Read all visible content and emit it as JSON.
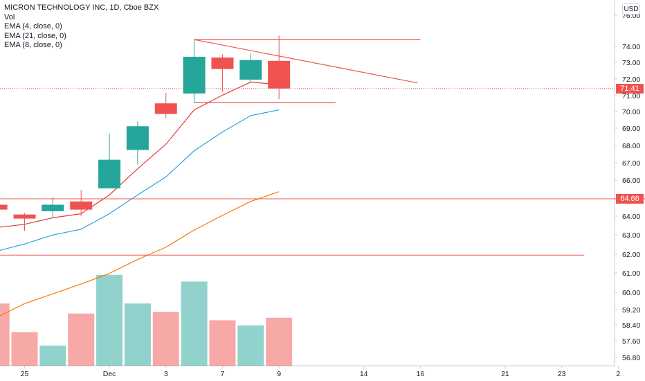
{
  "legend": {
    "title": "MICRON TECHNOLOGY INC, 1D, Cboe BZX",
    "vol": "Vol",
    "ema1": "EMA (4, close, 0)",
    "ema2": "EMA (21, close, 0)",
    "ema3": "EMA (8, close, 0)"
  },
  "currency": "USD",
  "price_tags": {
    "last": "71.41",
    "level": "64.66"
  },
  "colors": {
    "up": "#26a69a",
    "down": "#ef5350",
    "ema4": "#e53935",
    "ema8": "#2aa3d9",
    "ema21": "#f57c00",
    "drawing": "#ef5350"
  },
  "chart_data": {
    "type": "candlestick",
    "y_ticks": [
      "76.00",
      "74.00",
      "73.00",
      "72.00",
      "71.00",
      "70.00",
      "69.00",
      "68.00",
      "67.00",
      "66.00",
      "65.00",
      "64.00",
      "63.00",
      "62.00",
      "61.00",
      "60.00",
      "59.20",
      "58.40",
      "57.60",
      "56.80"
    ],
    "x_ticks": [
      {
        "label": "25",
        "slot": 0
      },
      {
        "label": "Dec",
        "slot": 3
      },
      {
        "label": "3",
        "slot": 5
      },
      {
        "label": "7",
        "slot": 7
      },
      {
        "label": "9",
        "slot": 9
      },
      {
        "label": "14",
        "slot": 12
      },
      {
        "label": "16",
        "slot": 14
      },
      {
        "label": "21",
        "slot": 17
      },
      {
        "label": "23",
        "slot": 19
      },
      {
        "label": "2",
        "slot": 21
      }
    ],
    "candles": [
      {
        "slot": -1,
        "open": 64.3,
        "high": 64.4,
        "low": 63.9,
        "close": 64.0
      },
      {
        "slot": 0,
        "open": 63.7,
        "high": 63.8,
        "low": 62.7,
        "close": 63.45
      },
      {
        "slot": 1,
        "open": 63.9,
        "high": 64.75,
        "low": 63.5,
        "close": 64.3
      },
      {
        "slot": 2,
        "open": 64.5,
        "high": 65.2,
        "low": 63.6,
        "close": 64.0
      },
      {
        "slot": 3,
        "open": 65.3,
        "high": 68.65,
        "low": 65.3,
        "close": 67.05
      },
      {
        "slot": 4,
        "open": 67.65,
        "high": 69.4,
        "low": 66.75,
        "close": 69.1
      },
      {
        "slot": 5,
        "open": 70.5,
        "high": 71.15,
        "low": 69.6,
        "close": 69.85
      },
      {
        "slot": 6,
        "open": 71.1,
        "high": 74.4,
        "low": 70.55,
        "close": 73.35
      },
      {
        "slot": 7,
        "open": 73.3,
        "high": 73.5,
        "low": 71.2,
        "close": 72.6
      },
      {
        "slot": 8,
        "open": 71.95,
        "high": 73.55,
        "low": 71.75,
        "close": 73.15
      },
      {
        "slot": 9,
        "open": 73.1,
        "high": 74.65,
        "low": 70.75,
        "close": 71.41
      }
    ],
    "volume": [
      {
        "slot": -1,
        "dir": "down",
        "value": 3.7
      },
      {
        "slot": 0,
        "dir": "down",
        "value": 2.0
      },
      {
        "slot": 1,
        "dir": "up",
        "value": 1.2
      },
      {
        "slot": 2,
        "dir": "down",
        "value": 3.1
      },
      {
        "slot": 3,
        "dir": "up",
        "value": 5.4
      },
      {
        "slot": 4,
        "dir": "up",
        "value": 3.7
      },
      {
        "slot": 5,
        "dir": "down",
        "value": 3.2
      },
      {
        "slot": 6,
        "dir": "up",
        "value": 5.0
      },
      {
        "slot": 7,
        "dir": "down",
        "value": 2.7
      },
      {
        "slot": 8,
        "dir": "up",
        "value": 2.4
      },
      {
        "slot": 9,
        "dir": "down",
        "value": 2.85
      }
    ],
    "ema4": [
      [
        -1,
        62.9
      ],
      [
        0,
        63.1
      ],
      [
        1,
        63.5
      ],
      [
        2,
        63.75
      ],
      [
        3,
        64.9
      ],
      [
        4,
        66.5
      ],
      [
        5,
        68.0
      ],
      [
        6,
        70.1
      ],
      [
        7,
        71.0
      ],
      [
        8,
        71.8
      ],
      [
        9,
        71.65
      ]
    ],
    "ema8": [
      [
        -1,
        61.45
      ],
      [
        0,
        61.9
      ],
      [
        1,
        62.45
      ],
      [
        2,
        62.8
      ],
      [
        3,
        63.75
      ],
      [
        4,
        64.9
      ],
      [
        5,
        66.0
      ],
      [
        6,
        67.6
      ],
      [
        7,
        68.75
      ],
      [
        8,
        69.75
      ],
      [
        9,
        70.1
      ]
    ],
    "ema21": [
      [
        -1,
        57.4
      ],
      [
        0,
        58.25
      ],
      [
        1,
        58.85
      ],
      [
        2,
        59.45
      ],
      [
        3,
        60.1
      ],
      [
        4,
        60.95
      ],
      [
        5,
        61.7
      ],
      [
        6,
        62.75
      ],
      [
        7,
        63.65
      ],
      [
        8,
        64.5
      ],
      [
        9,
        65.1
      ]
    ],
    "hlines": [
      {
        "value": 64.66,
        "from_slot": -1.2,
        "to_slot": 22.5
      },
      {
        "value": 61.22,
        "from_slot": -1.2,
        "to_slot": 19.8
      }
    ],
    "segments": [
      {
        "x1": 6,
        "y1": 74.4,
        "x2": 14,
        "y2": 74.4
      },
      {
        "x1": 6,
        "y1": 70.55,
        "x2": 11.0,
        "y2": 70.55
      },
      {
        "x1": 6,
        "y1": 74.4,
        "x2": 13.9,
        "y2": 71.75
      }
    ],
    "last_price": 71.41
  }
}
